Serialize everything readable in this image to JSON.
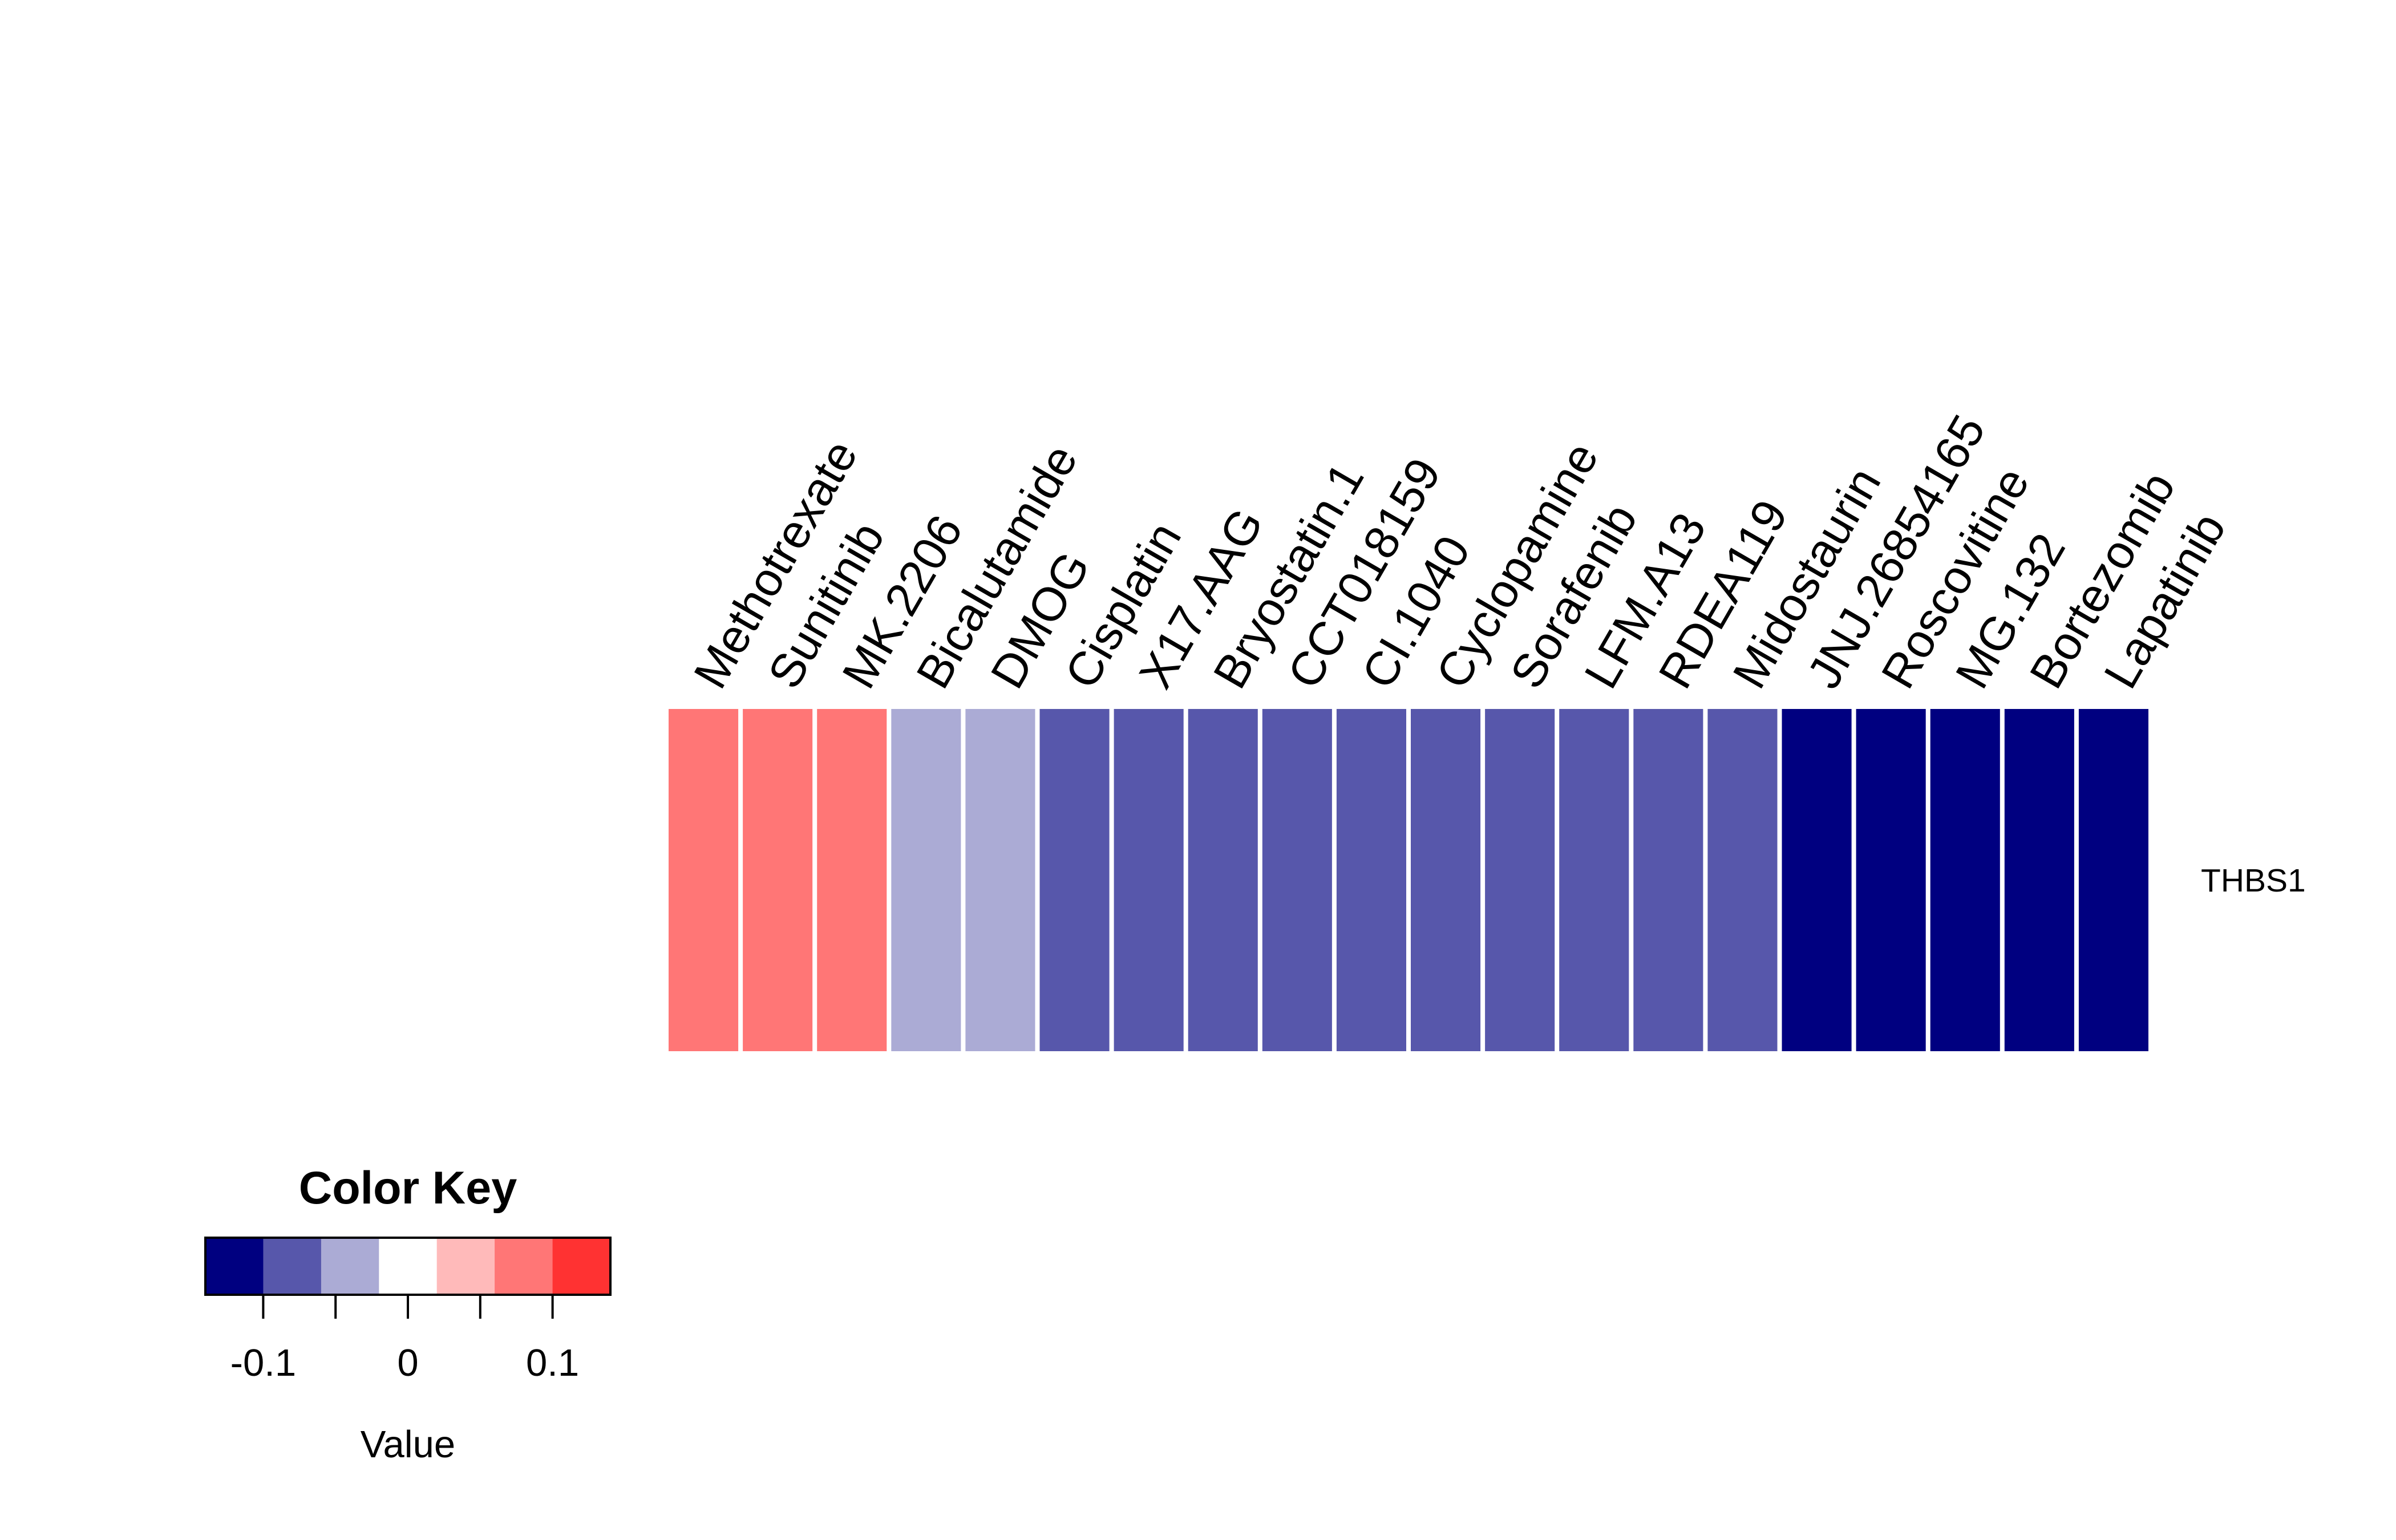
{
  "chart_data": {
    "type": "heatmap",
    "columns": [
      "Methotrexate",
      "Sunitinib",
      "MK.2206",
      "Bicalutamide",
      "DMOG",
      "Cisplatin",
      "X17.AAG",
      "Bryostatin.1",
      "CCT018159",
      "CI.1040",
      "Cyclopamine",
      "Sorafenib",
      "LFM.A13",
      "RDEA119",
      "Midostaurin",
      "JNJ.26854165",
      "Roscovitine",
      "MG.132",
      "Bortezomib",
      "Lapatinib"
    ],
    "rows": [
      "THBS1"
    ],
    "values": [
      [
        0.08,
        0.08,
        0.08,
        -0.04,
        -0.04,
        -0.08,
        -0.08,
        -0.08,
        -0.08,
        -0.08,
        -0.08,
        -0.08,
        -0.08,
        -0.08,
        -0.08,
        -0.12,
        -0.12,
        -0.12,
        -0.12,
        -0.12
      ]
    ],
    "color_key": {
      "title": "Color Key",
      "xlabel": "Value",
      "range": [
        -0.14,
        0.14
      ],
      "breaks": [
        -0.14,
        -0.1,
        -0.06,
        -0.02,
        0.02,
        0.06,
        0.1,
        0.14
      ],
      "colors": [
        "#000080",
        "#5757AB",
        "#ABABD5",
        "#FFFFFF",
        "#FFBABA",
        "#FF7676",
        "#FF3232"
      ],
      "ticks": [
        -0.1,
        -0.05,
        0,
        0.05,
        0.1
      ],
      "tick_labels": [
        "-0.1",
        "",
        "0",
        "",
        "0.1"
      ]
    }
  }
}
